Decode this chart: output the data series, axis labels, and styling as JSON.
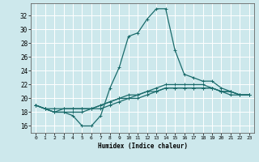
{
  "title": "",
  "xlabel": "Humidex (Indice chaleur)",
  "bg_color": "#cde8ec",
  "grid_color": "#ffffff",
  "line_color": "#1a6b6b",
  "xlim": [
    -0.5,
    23.5
  ],
  "ylim": [
    15.0,
    33.8
  ],
  "yticks": [
    16,
    18,
    20,
    22,
    24,
    26,
    28,
    30,
    32
  ],
  "xticks": [
    0,
    1,
    2,
    3,
    4,
    5,
    6,
    7,
    8,
    9,
    10,
    11,
    12,
    13,
    14,
    15,
    16,
    17,
    18,
    19,
    20,
    21,
    22,
    23
  ],
  "series": [
    [
      19.0,
      18.5,
      18.0,
      18.0,
      17.5,
      16.0,
      16.0,
      17.5,
      21.5,
      24.5,
      29.0,
      29.5,
      31.5,
      33.0,
      33.0,
      27.0,
      23.5,
      23.0,
      22.5,
      22.5,
      21.5,
      21.0,
      20.5,
      20.5
    ],
    [
      19.0,
      18.5,
      18.0,
      18.0,
      18.0,
      18.0,
      18.5,
      18.5,
      19.0,
      19.5,
      20.0,
      20.0,
      20.5,
      21.0,
      21.5,
      21.5,
      21.5,
      21.5,
      21.5,
      21.5,
      21.0,
      20.5,
      20.5,
      20.5
    ],
    [
      19.0,
      18.5,
      18.0,
      18.5,
      18.5,
      18.5,
      18.5,
      19.0,
      19.5,
      20.0,
      20.0,
      20.5,
      21.0,
      21.0,
      21.5,
      21.5,
      21.5,
      21.5,
      21.5,
      21.5,
      21.0,
      21.0,
      20.5,
      20.5
    ],
    [
      19.0,
      18.5,
      18.5,
      18.5,
      18.5,
      18.5,
      18.5,
      19.0,
      19.5,
      20.0,
      20.5,
      20.5,
      21.0,
      21.5,
      22.0,
      22.0,
      22.0,
      22.0,
      22.0,
      21.5,
      21.0,
      21.0,
      20.5,
      20.5
    ]
  ]
}
